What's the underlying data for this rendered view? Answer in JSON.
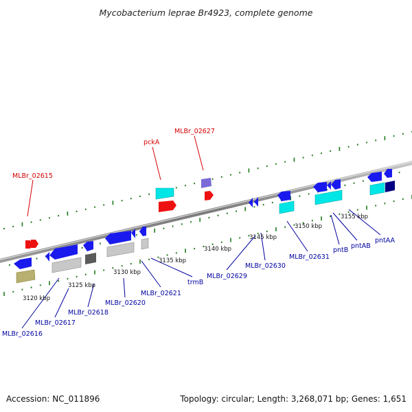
{
  "title": "Mycobacterium leprae Br4923, complete genome",
  "footer": {
    "accession": "Accession: NC_011896",
    "topology": "Topology: circular; Length: 3,268,071 bp; Genes: 1,651"
  },
  "colors": {
    "forward_label": "#d40000",
    "reverse_label": "#0000a0",
    "blue_gene": "#1a1aee",
    "red_gene": "#ee1111",
    "cyan_gene": "#00e5e5",
    "grey_gene": "#c8c8c8",
    "tick": "#1f7a1f"
  },
  "ruler_labels": [
    "3120 kbp",
    "3125 kbp",
    "3130 kbp",
    "3135 kbp",
    "3140 kbp",
    "3145 kbp",
    "3150 kbp",
    "3155 kbp"
  ],
  "forward_labels": [
    "MLBr_02615",
    "pckA",
    "MLBr_02627"
  ],
  "reverse_labels": [
    "MLBr_02616",
    "MLBr_02617",
    "MLBr_02618",
    "MLBr_02620",
    "MLBr_02621",
    "trmB",
    "MLBr_02629",
    "MLBr_02630",
    "MLBr_02631",
    "pntB",
    "pntAB",
    "pntAA"
  ]
}
